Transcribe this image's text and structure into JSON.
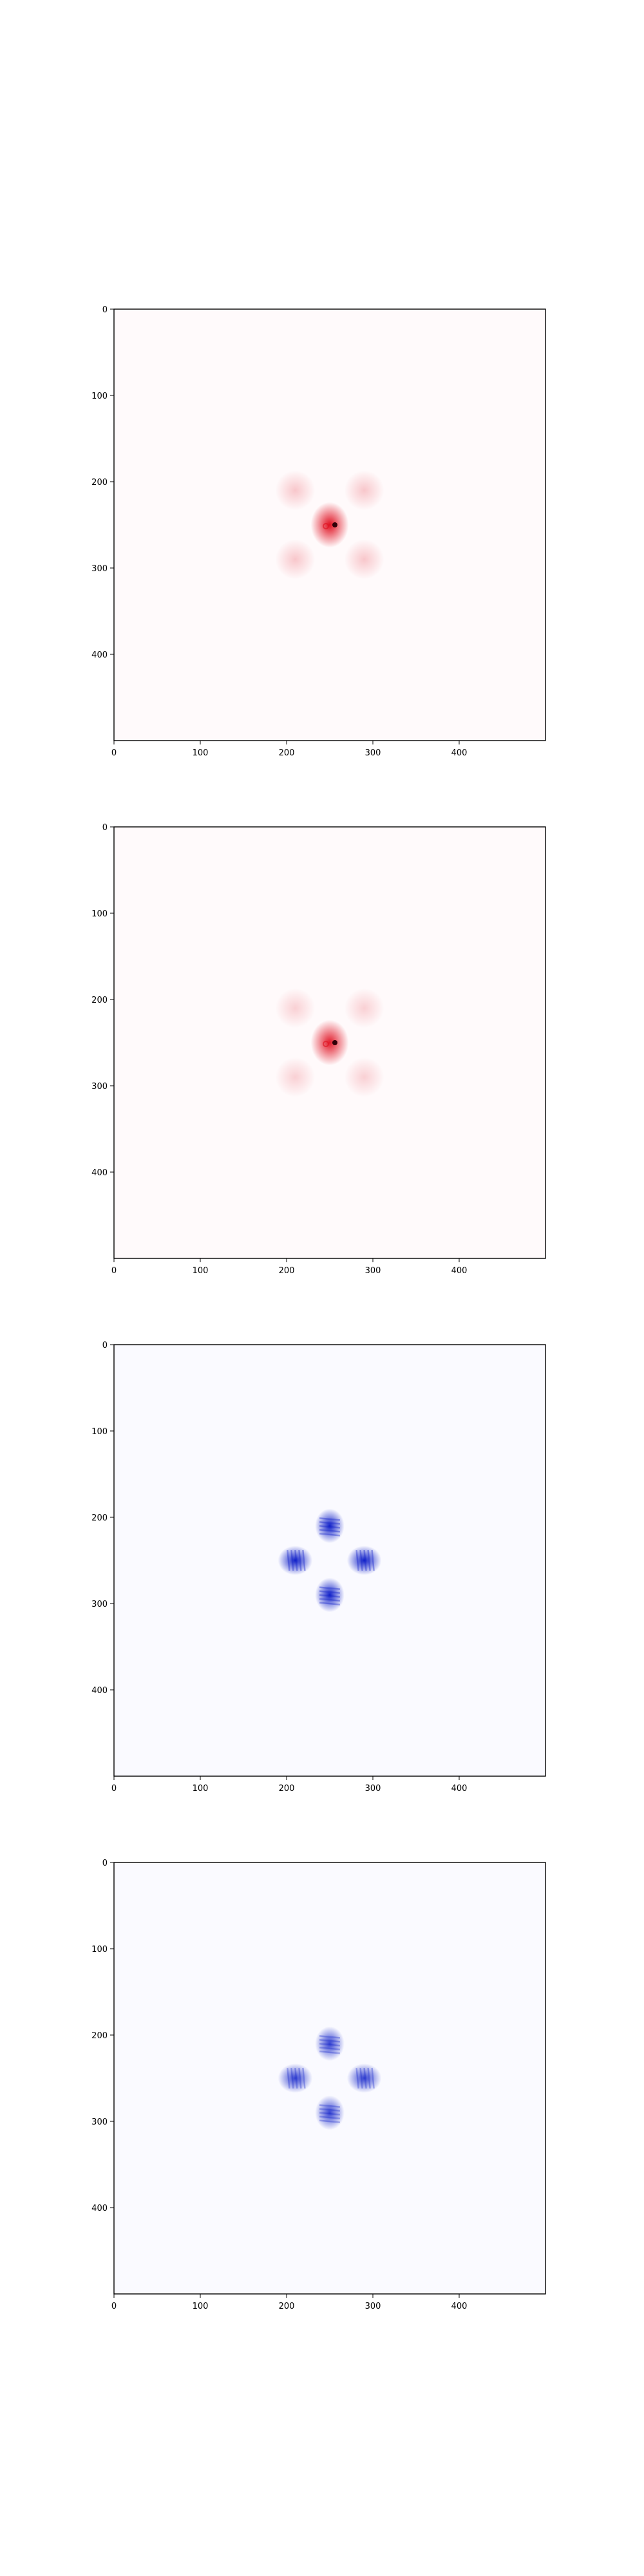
{
  "chart_data": [
    {
      "type": "heatmap",
      "colormap": "red",
      "accent_color": "#e01020",
      "background_color": "#fffafb",
      "pattern": "four diffuse lobes around a bright center (diagonal arrangement)",
      "center_lobe": {
        "x": 250,
        "y": 250,
        "intensity": 1.0
      },
      "side_lobes": [
        {
          "x": 210,
          "y": 210,
          "intensity": 0.22
        },
        {
          "x": 290,
          "y": 210,
          "intensity": 0.22
        },
        {
          "x": 210,
          "y": 290,
          "intensity": 0.22
        },
        {
          "x": 290,
          "y": 290,
          "intensity": 0.22
        }
      ],
      "xlim": [
        0,
        500
      ],
      "ylim": [
        500,
        0
      ],
      "xticks": [
        "0",
        "100",
        "200",
        "300",
        "400"
      ],
      "yticks": [
        "0",
        "100",
        "200",
        "300",
        "400"
      ]
    },
    {
      "type": "heatmap",
      "colormap": "red",
      "accent_color": "#e01020",
      "background_color": "#fffafb",
      "pattern": "four diffuse lobes around a bright center (diagonal arrangement)",
      "center_lobe": {
        "x": 250,
        "y": 250,
        "intensity": 0.95
      },
      "side_lobes": [
        {
          "x": 210,
          "y": 210,
          "intensity": 0.18
        },
        {
          "x": 290,
          "y": 210,
          "intensity": 0.18
        },
        {
          "x": 210,
          "y": 290,
          "intensity": 0.18
        },
        {
          "x": 290,
          "y": 290,
          "intensity": 0.18
        }
      ],
      "xlim": [
        0,
        500
      ],
      "ylim": [
        500,
        0
      ],
      "xticks": [
        "0",
        "100",
        "200",
        "300",
        "400"
      ],
      "yticks": [
        "0",
        "100",
        "200",
        "300",
        "400"
      ]
    },
    {
      "type": "heatmap",
      "colormap": "blue",
      "accent_color": "#1020c8",
      "background_color": "#fafaff",
      "pattern": "four strong lobes in a cross arrangement with an empty center",
      "lobes": [
        {
          "x": 250,
          "y": 210,
          "intensity": 1.0
        },
        {
          "x": 210,
          "y": 250,
          "intensity": 1.0
        },
        {
          "x": 290,
          "y": 250,
          "intensity": 1.0
        },
        {
          "x": 250,
          "y": 290,
          "intensity": 1.0
        }
      ],
      "xlim": [
        0,
        500
      ],
      "ylim": [
        500,
        0
      ],
      "xticks": [
        "0",
        "100",
        "200",
        "300",
        "400"
      ],
      "yticks": [
        "0",
        "100",
        "200",
        "300",
        "400"
      ]
    },
    {
      "type": "heatmap",
      "colormap": "blue",
      "accent_color": "#1020c8",
      "background_color": "#fafaff",
      "pattern": "four lobes in a cross arrangement with an empty center",
      "lobes": [
        {
          "x": 250,
          "y": 210,
          "intensity": 0.85
        },
        {
          "x": 210,
          "y": 250,
          "intensity": 0.85
        },
        {
          "x": 290,
          "y": 250,
          "intensity": 0.85
        },
        {
          "x": 250,
          "y": 290,
          "intensity": 0.85
        }
      ],
      "xlim": [
        0,
        500
      ],
      "ylim": [
        500,
        0
      ],
      "xticks": [
        "0",
        "100",
        "200",
        "300",
        "400"
      ],
      "yticks": [
        "0",
        "100",
        "200",
        "300",
        "400"
      ]
    }
  ]
}
